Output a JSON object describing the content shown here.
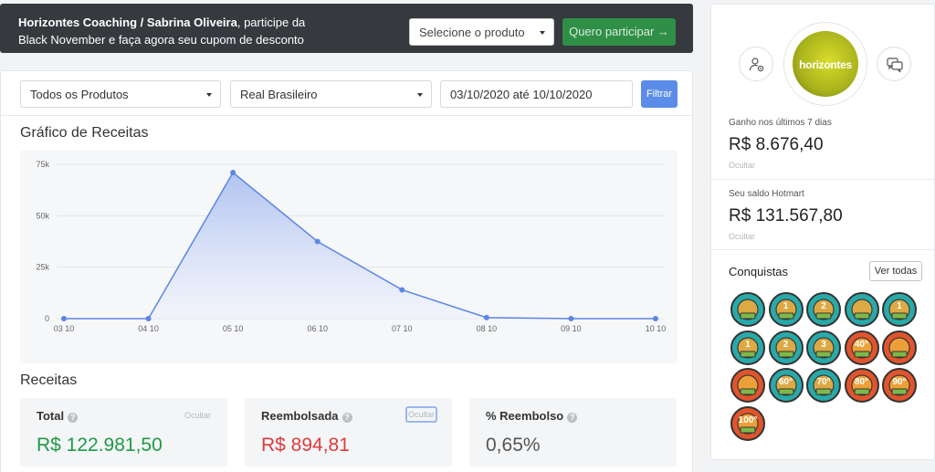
{
  "banner": {
    "bold_text": "Horizontes Coaching / Sabrina Oliveira",
    "text": ", participe da Black November e faça agora seu cupom de desconto",
    "select_label": "Selecione o produto",
    "cta_label": "Quero participar →"
  },
  "filters": {
    "product": "Todos os Produtos",
    "currency": "Real Brasileiro",
    "date_range": "03/10/2020 até 10/10/2020",
    "button": "Filtrar"
  },
  "chart_section": {
    "title": "Gráfico de Receitas"
  },
  "chart_data": {
    "type": "area",
    "title": "Gráfico de Receitas",
    "x": [
      "03 10",
      "04 10",
      "05 10",
      "06 10",
      "07 10",
      "08 10",
      "09 10",
      "10 10"
    ],
    "values": [
      0,
      0,
      71000,
      37500,
      14000,
      500,
      0,
      0
    ],
    "y_ticks": [
      "0",
      "25k",
      "50k",
      "75k"
    ],
    "ylim": [
      0,
      75000
    ],
    "grid": true,
    "colors": {
      "line": "#5b86e5",
      "fill_top": "#a9bdf0",
      "fill_bottom": "#eef2fc"
    }
  },
  "receitas": {
    "title": "Receitas",
    "total": {
      "label": "Total",
      "value": "R$ 122.981,50",
      "hide": "Ocultar"
    },
    "reembolsada": {
      "label": "Reembolsada",
      "value": "R$ 894,81",
      "hide": "Ocultar"
    },
    "percentual": {
      "label": "% Reembolso",
      "value": "0,65%"
    }
  },
  "side": {
    "avatar_text": "horizontes",
    "earned_label": "Ganho nos últimos 7 dias",
    "earned_value": "R$ 8.676,40",
    "earned_hide": "Ocultar",
    "balance_label": "Seu saldo Hotmart",
    "balance_value": "R$ 131.567,80",
    "balance_hide": "Ocultar",
    "achievements_title": "Conquistas",
    "view_all": "Ver todas"
  },
  "badges": [
    {
      "icon": "certificate-check-icon",
      "label": "",
      "color": "#2aa9a9"
    },
    {
      "icon": "cart-rank-1-icon",
      "label": "1",
      "color": "#2aa9a9"
    },
    {
      "icon": "cart-rank-2-icon",
      "label": "2",
      "color": "#2aa9a9"
    },
    {
      "icon": "trophy-icon",
      "label": "",
      "color": "#2aa9a9"
    },
    {
      "icon": "android-rank-1-icon",
      "label": "1",
      "color": "#2aa9a9"
    },
    {
      "icon": "robot-rank-1-icon",
      "label": "1",
      "color": "#2aa9a9"
    },
    {
      "icon": "robot-rank-2-icon",
      "label": "2",
      "color": "#2aa9a9"
    },
    {
      "icon": "robot-rank-3-icon",
      "label": "3",
      "color": "#2aa9a9"
    },
    {
      "icon": "hot-sun-40-icon",
      "label": "40°",
      "color": "#e0552d"
    },
    {
      "icon": "ninja-icon",
      "label": "",
      "color": "#e0552d"
    },
    {
      "icon": "desert-sun-icon",
      "label": "",
      "color": "#e0552d"
    },
    {
      "icon": "flame-60-icon",
      "label": "60°",
      "color": "#2aa9a9"
    },
    {
      "icon": "flame-70-icon",
      "label": "70°",
      "color": "#2aa9a9"
    },
    {
      "icon": "flame-80-icon",
      "label": "80°",
      "color": "#e0552d"
    },
    {
      "icon": "flame-90-icon",
      "label": "90°",
      "color": "#e0552d"
    },
    {
      "icon": "flame-100-icon",
      "label": "100°",
      "color": "#e0552d"
    }
  ]
}
